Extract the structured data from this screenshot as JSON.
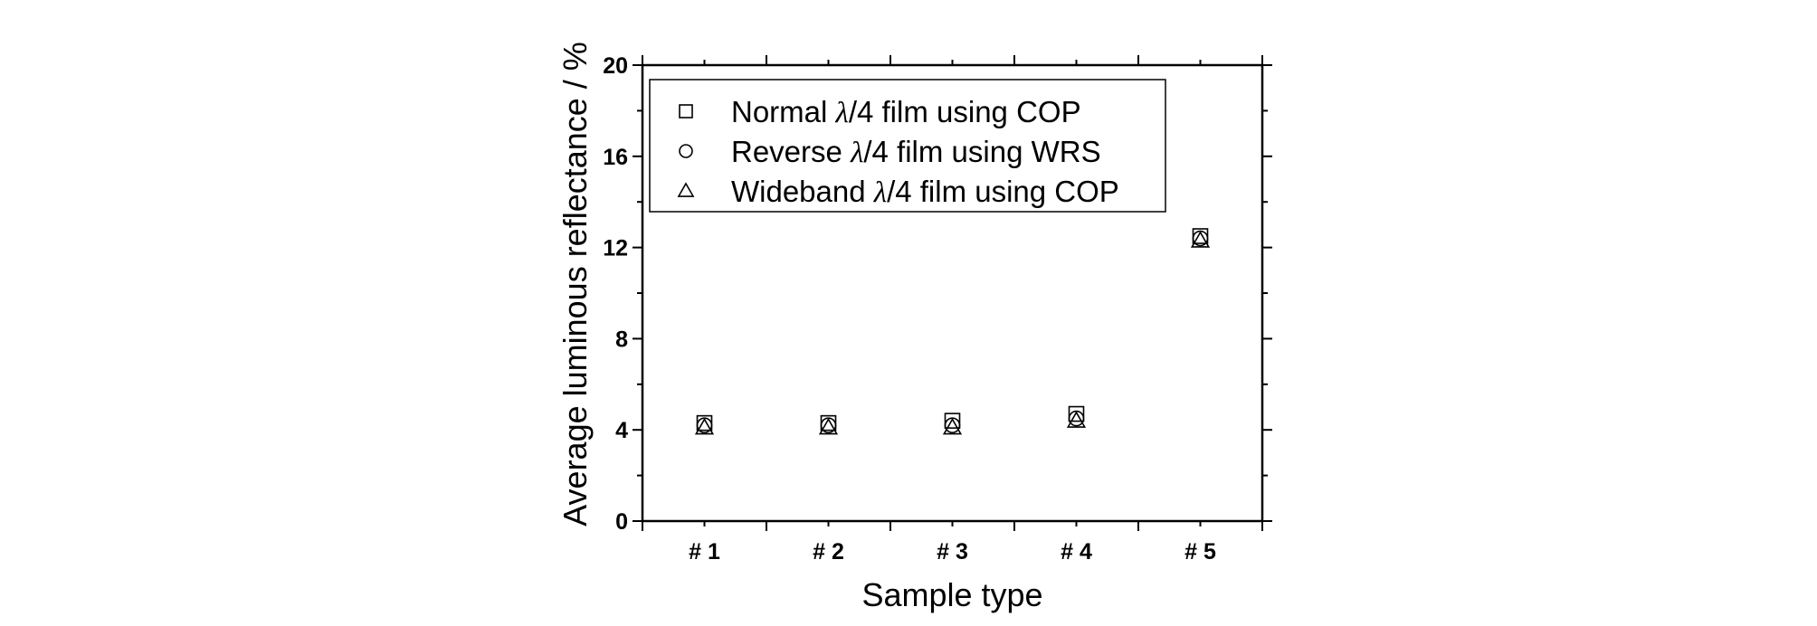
{
  "chart_data": {
    "type": "scatter",
    "categories": [
      "# 1",
      "# 2",
      "# 3",
      "# 4",
      "# 5"
    ],
    "series": [
      {
        "name": "Normal λ/4 film using COP",
        "marker": "square",
        "values": [
          4.3,
          4.3,
          4.4,
          4.7,
          12.5
        ]
      },
      {
        "name": "Reverse λ/4 film using WRS",
        "marker": "circle",
        "values": [
          4.2,
          4.2,
          4.2,
          4.5,
          12.4
        ]
      },
      {
        "name": "Wideband λ/4 film using COP",
        "marker": "triangle",
        "values": [
          4.1,
          4.1,
          4.1,
          4.4,
          12.3
        ]
      }
    ],
    "legend": [
      {
        "prefix": "Normal ",
        "symbol": "λ",
        "suffix": "/4 film using COP"
      },
      {
        "prefix": "Reverse ",
        "symbol": "λ",
        "suffix": "/4 film using WRS"
      },
      {
        "prefix": "Wideband ",
        "symbol": "λ",
        "suffix": "/4 film using COP"
      }
    ],
    "legend_position": "top-left",
    "xlabel": "Sample type",
    "ylabel": "Average luminous reflectance / %",
    "ylim": [
      0,
      20
    ],
    "yticks": [
      0,
      4,
      8,
      12,
      16,
      20
    ],
    "grid": false,
    "colors": {
      "marker": "#000000",
      "axis": "#000000",
      "background": "#ffffff"
    }
  }
}
